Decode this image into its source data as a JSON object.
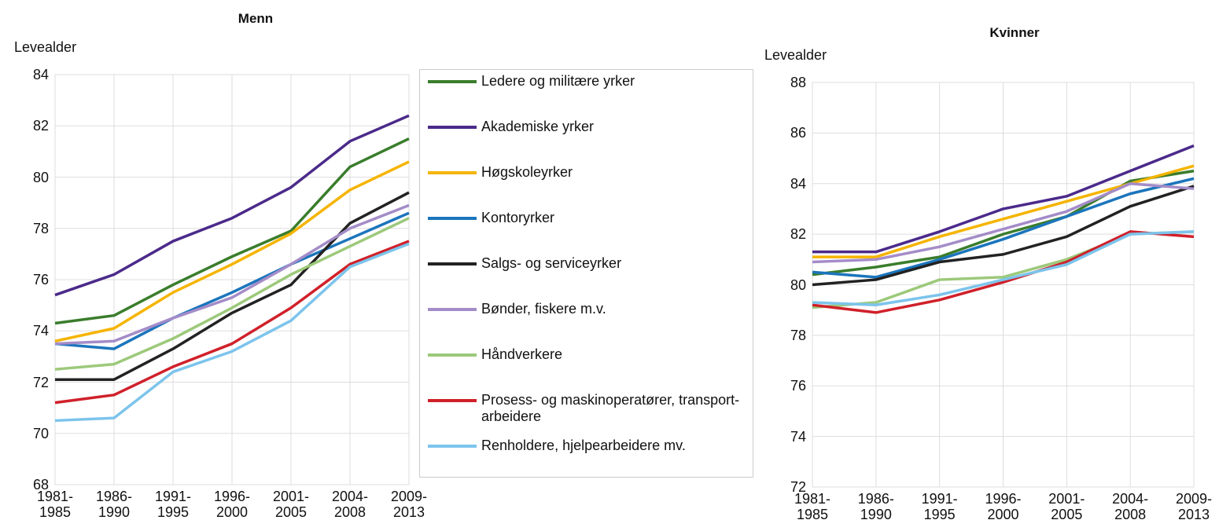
{
  "chart_data": [
    {
      "type": "line",
      "title": "Menn",
      "y_label": "Levealder",
      "categories": [
        "1981-1985",
        "1986-1990",
        "1991-1995",
        "1996-2000",
        "2001-2005",
        "2004-2008",
        "2009-2013"
      ],
      "ylim": [
        68,
        84
      ],
      "yticks": [
        68,
        70,
        72,
        74,
        76,
        78,
        80,
        82,
        84
      ],
      "grid": true,
      "series": [
        {
          "name": "Ledere og militære yrker",
          "color": "#3a7d2c",
          "values": [
            74.3,
            74.6,
            75.8,
            76.9,
            77.9,
            80.4,
            81.5
          ]
        },
        {
          "name": "Akademiske yrker",
          "color": "#4b2a8a",
          "values": [
            75.4,
            76.2,
            77.5,
            78.4,
            79.6,
            81.4,
            82.4
          ]
        },
        {
          "name": "Høgskoleyrker",
          "color": "#f5b400",
          "values": [
            73.6,
            74.1,
            75.5,
            76.6,
            77.8,
            79.5,
            80.6
          ]
        },
        {
          "name": "Kontoryrker",
          "color": "#1b75bc",
          "values": [
            73.5,
            73.3,
            74.5,
            75.5,
            76.6,
            77.6,
            78.6
          ]
        },
        {
          "name": "Salgs- og serviceyrker",
          "color": "#222222",
          "values": [
            72.1,
            72.1,
            73.3,
            74.7,
            75.8,
            78.2,
            79.4
          ]
        },
        {
          "name": "Bønder, fiskere m.v.",
          "color": "#a48cc8",
          "values": [
            73.5,
            73.6,
            74.5,
            75.3,
            76.6,
            78.0,
            78.9
          ]
        },
        {
          "name": "Håndverkere",
          "color": "#9cc97a",
          "values": [
            72.5,
            72.7,
            73.7,
            74.9,
            76.2,
            77.3,
            78.4
          ]
        },
        {
          "name": "Prosess- og maskinoperatører, transport- arbeidere",
          "color": "#d0202a",
          "values": [
            71.2,
            71.5,
            72.6,
            73.5,
            74.9,
            76.6,
            77.5
          ]
        },
        {
          "name": "Renholdere, hjelpearbeidere mv.",
          "color": "#7cc4ec",
          "values": [
            70.5,
            70.6,
            72.4,
            73.2,
            74.4,
            76.5,
            77.4
          ]
        }
      ]
    },
    {
      "type": "line",
      "title": "Kvinner",
      "y_label": "Levealder",
      "categories": [
        "1981-1985",
        "1986-1990",
        "1991-1995",
        "1996-2000",
        "2001-2005",
        "2004-2008",
        "2009-2013"
      ],
      "ylim": [
        72,
        88
      ],
      "yticks": [
        72,
        74,
        76,
        78,
        80,
        82,
        84,
        86,
        88
      ],
      "grid": true,
      "series": [
        {
          "color": "#3a7d2c",
          "values": [
            80.4,
            80.7,
            81.1,
            82.0,
            82.7,
            84.1,
            84.5
          ]
        },
        {
          "color": "#4b2a8a",
          "values": [
            81.3,
            81.3,
            82.1,
            83.0,
            83.5,
            84.5,
            85.5
          ]
        },
        {
          "color": "#f5b400",
          "values": [
            81.1,
            81.1,
            81.9,
            82.6,
            83.3,
            84.0,
            84.7
          ]
        },
        {
          "color": "#1b75bc",
          "values": [
            80.5,
            80.3,
            81.0,
            81.8,
            82.7,
            83.6,
            84.2
          ]
        },
        {
          "color": "#222222",
          "values": [
            80.0,
            80.2,
            80.9,
            81.2,
            81.9,
            83.1,
            83.9
          ]
        },
        {
          "color": "#a48cc8",
          "values": [
            80.9,
            81.0,
            81.5,
            82.2,
            82.9,
            84.0,
            83.8
          ]
        },
        {
          "color": "#9cc97a",
          "values": [
            79.1,
            79.3,
            80.2,
            80.3,
            81.0,
            82.0,
            82.1
          ]
        },
        {
          "color": "#d0202a",
          "values": [
            79.2,
            78.9,
            79.4,
            80.1,
            80.9,
            82.1,
            81.9
          ]
        },
        {
          "color": "#7cc4ec",
          "values": [
            79.3,
            79.2,
            79.6,
            80.2,
            80.8,
            82.0,
            82.1
          ]
        }
      ]
    }
  ]
}
